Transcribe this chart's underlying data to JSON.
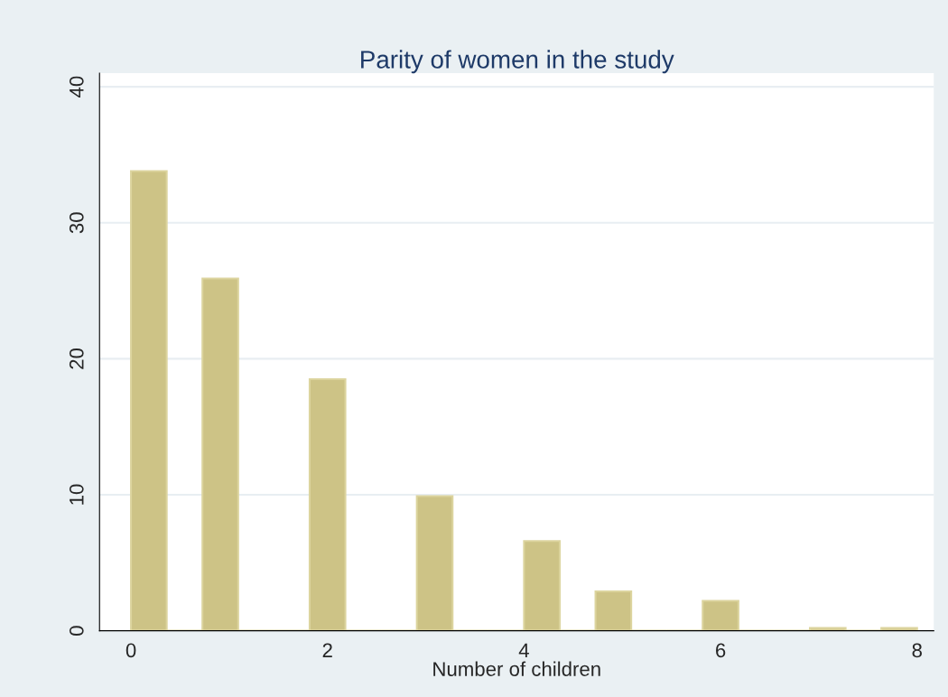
{
  "chart_data": {
    "type": "histogram",
    "title": "Parity of women in the study",
    "xlabel": "Number of children",
    "bins": [
      0,
      0.3636,
      0.7273,
      1.0909,
      1.4545,
      1.8182,
      2.1818,
      2.5455,
      2.9091,
      3.2727,
      3.6364,
      4,
      4.3636,
      4.7273,
      5.0909,
      5.4545,
      5.8182,
      6.1818,
      6.5455,
      6.9091,
      7.2727,
      7.6364,
      8
    ],
    "values": [
      33.8,
      0,
      25.9,
      0,
      0,
      18.5,
      0,
      0,
      9.9,
      0,
      0,
      6.6,
      0,
      2.9,
      0,
      0,
      2.2,
      0,
      0,
      0.2,
      0,
      0.2
    ],
    "color": "#cdc386",
    "xlim": [
      -0.32,
      8.17
    ],
    "xticks": [
      0,
      2,
      4,
      6,
      8
    ],
    "ylim": [
      0,
      41
    ],
    "yticks": [
      0,
      10,
      20,
      30,
      40
    ],
    "grid": "y"
  }
}
